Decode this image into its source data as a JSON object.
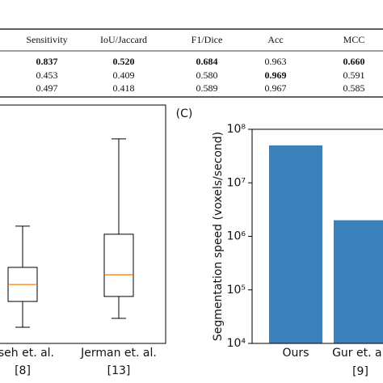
{
  "table": {
    "header": [
      "Sensitivity",
      "IoU/Jaccard",
      "F1/Dice",
      "Acc",
      "MCC"
    ],
    "rows": [
      [
        "0.837",
        "0.520",
        "0.684",
        "0.963",
        "0.660"
      ],
      [
        "0.453",
        "0.409",
        "0.580",
        "0.969",
        "0.591"
      ],
      [
        "0.497",
        "0.418",
        "0.589",
        "0.967",
        "0.585"
      ]
    ],
    "bold": [
      [
        true,
        true,
        true,
        false,
        true
      ],
      [
        false,
        false,
        false,
        true,
        false
      ],
      [
        false,
        false,
        false,
        false,
        false
      ]
    ]
  },
  "chart_data": [
    {
      "type": "box",
      "categories": [
        "nseh et. al.",
        "Jerman et. al."
      ],
      "refs": [
        "[8]",
        "[13]"
      ],
      "boxes": [
        {
          "min": 0.068,
          "q1": 0.176,
          "median": 0.247,
          "q3": 0.319,
          "max": 0.492
        },
        {
          "min": 0.105,
          "q1": 0.197,
          "median": 0.288,
          "q3": 0.458,
          "max": 0.858
        }
      ],
      "median_color": "#ff7f0e",
      "ylim": [
        0,
        1
      ]
    },
    {
      "type": "bar",
      "panel_label": "(C)",
      "ylabel": "Segmentation speed (voxels/second)",
      "categories": [
        "Ours",
        "Gur et. al."
      ],
      "refs": [
        null,
        "[9]"
      ],
      "values": [
        50000000,
        2000000
      ],
      "color": "#3a80ba",
      "log_scale": true,
      "ylim": [
        10000,
        100000000
      ],
      "yticks": [
        {
          "value": 10000,
          "label": "10⁴"
        },
        {
          "value": 100000,
          "label": "10⁵"
        },
        {
          "value": 1000000,
          "label": "10⁶"
        },
        {
          "value": 10000000,
          "label": "10⁷"
        },
        {
          "value": 100000000,
          "label": "10⁸"
        }
      ]
    }
  ]
}
